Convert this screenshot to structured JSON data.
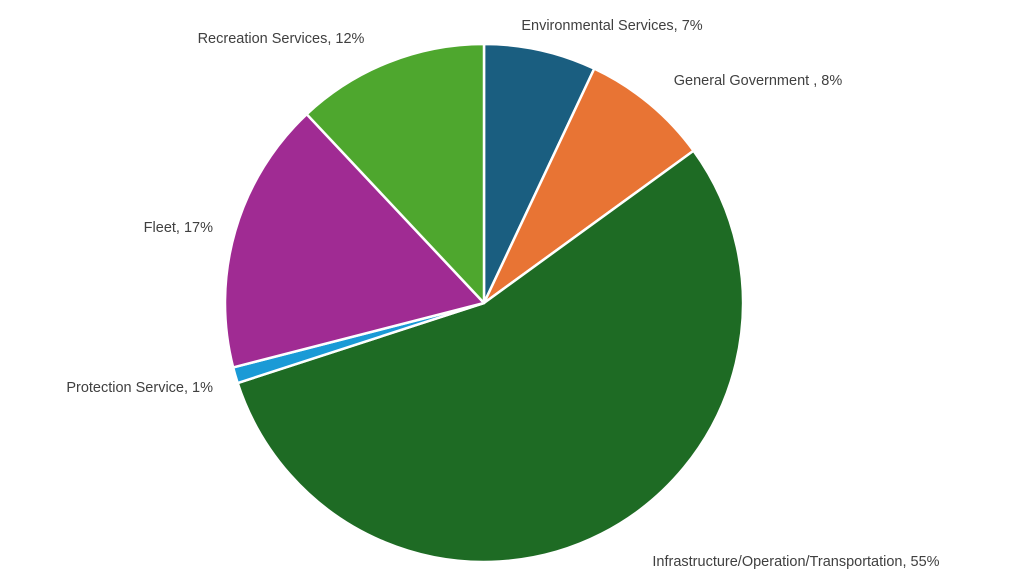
{
  "chart_data": {
    "type": "pie",
    "title": "",
    "start_angle_deg": 0,
    "direction": "clockwise",
    "slices": [
      {
        "label": "Environmental Services",
        "value": 7,
        "data_label": "Environmental Services, 7%",
        "color": "#1a5e80"
      },
      {
        "label": "General Government ",
        "value": 8,
        "data_label": "General Government , 8%",
        "color": "#e87434"
      },
      {
        "label": "Infrastructure/Operation/Transportation",
        "value": 55,
        "data_label": "Infrastructure/Operation/Transportation, 55%",
        "color": "#1e6b24"
      },
      {
        "label": "Protection Service",
        "value": 1,
        "data_label": "Protection Service, 1%",
        "color": "#1a9ad6"
      },
      {
        "label": "Fleet",
        "value": 17,
        "data_label": "Fleet, 17%",
        "color": "#a02b93"
      },
      {
        "label": "Recreation Services",
        "value": 12,
        "data_label": "Recreation Services, 12%",
        "color": "#4ea72e"
      }
    ],
    "legend": "none",
    "slice_border_color": "#ffffff"
  }
}
